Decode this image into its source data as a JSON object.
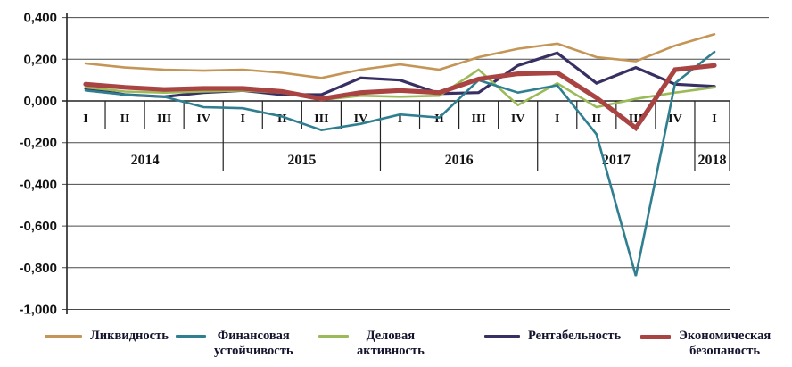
{
  "chart_data": {
    "type": "line",
    "title": "",
    "xlabel": "",
    "ylabel": "",
    "ylim": [
      -1.0,
      0.4
    ],
    "grid": true,
    "legend_position": "bottom",
    "categories": [
      "I",
      "II",
      "III",
      "IV",
      "I",
      "II",
      "III",
      "IV",
      "I",
      "II",
      "III",
      "IV",
      "I",
      "II",
      "III",
      "IV",
      "I"
    ],
    "year_groups": [
      {
        "label": "2014",
        "count": 4
      },
      {
        "label": "2015",
        "count": 4
      },
      {
        "label": "2016",
        "count": 4
      },
      {
        "label": "2017",
        "count": 4
      },
      {
        "label": "2018",
        "count": 1
      }
    ],
    "y_ticks": [
      {
        "label": "0,400",
        "value": 0.4
      },
      {
        "label": "0,200",
        "value": 0.2
      },
      {
        "label": "0,000",
        "value": 0.0
      },
      {
        "label": "-0,200",
        "value": -0.2
      },
      {
        "label": "-0,400",
        "value": -0.4
      },
      {
        "label": "-0,600",
        "value": -0.6
      },
      {
        "label": "-0,800",
        "value": -0.8
      },
      {
        "label": "-1,000",
        "value": -1.0
      }
    ],
    "series": [
      {
        "name": "Ликвидность",
        "color": "#C49556",
        "width": 2.6,
        "values": [
          0.18,
          0.16,
          0.15,
          0.145,
          0.15,
          0.135,
          0.11,
          0.15,
          0.175,
          0.15,
          0.21,
          0.25,
          0.275,
          0.21,
          0.19,
          0.265,
          0.32
        ]
      },
      {
        "name": "Финансовая устойчивость",
        "color": "#2F7F91",
        "width": 2.6,
        "values": [
          0.05,
          0.03,
          0.02,
          -0.03,
          -0.035,
          -0.075,
          -0.14,
          -0.11,
          -0.065,
          -0.08,
          0.1,
          0.04,
          0.075,
          -0.16,
          -0.84,
          0.085,
          0.235
        ]
      },
      {
        "name": "Деловая активность",
        "color": "#9BBB59",
        "width": 2.6,
        "values": [
          0.065,
          0.045,
          0.04,
          0.045,
          0.05,
          0.04,
          0.005,
          0.025,
          0.02,
          0.025,
          0.15,
          -0.02,
          0.085,
          -0.03,
          0.01,
          0.04,
          0.065
        ]
      },
      {
        "name": "Рентабельность",
        "color": "#383063",
        "width": 3.2,
        "values": [
          0.06,
          0.03,
          0.02,
          0.04,
          0.05,
          0.03,
          0.03,
          0.11,
          0.1,
          0.035,
          0.04,
          0.17,
          0.23,
          0.085,
          0.16,
          0.08,
          0.07
        ]
      },
      {
        "name": "Экономическая безопаность",
        "color": "#A94442",
        "width": 5.2,
        "values": [
          0.08,
          0.065,
          0.055,
          0.06,
          0.06,
          0.045,
          0.01,
          0.04,
          0.05,
          0.04,
          0.105,
          0.13,
          0.135,
          0.015,
          -0.13,
          0.15,
          0.17
        ]
      }
    ]
  },
  "legend": {
    "items": [
      {
        "label_lines": [
          "Ликвидность"
        ],
        "color": "#C49556",
        "thickness": 3
      },
      {
        "label_lines": [
          "Финансовая",
          "устойчивость"
        ],
        "color": "#2F7F91",
        "thickness": 3
      },
      {
        "label_lines": [
          "Деловая",
          "активность"
        ],
        "color": "#9BBB59",
        "thickness": 3
      },
      {
        "label_lines": [
          "Рентабельность"
        ],
        "color": "#383063",
        "thickness": 3
      },
      {
        "label_lines": [
          "Экономическая",
          "безопаность"
        ],
        "color": "#A94442",
        "thickness": 5
      }
    ]
  }
}
